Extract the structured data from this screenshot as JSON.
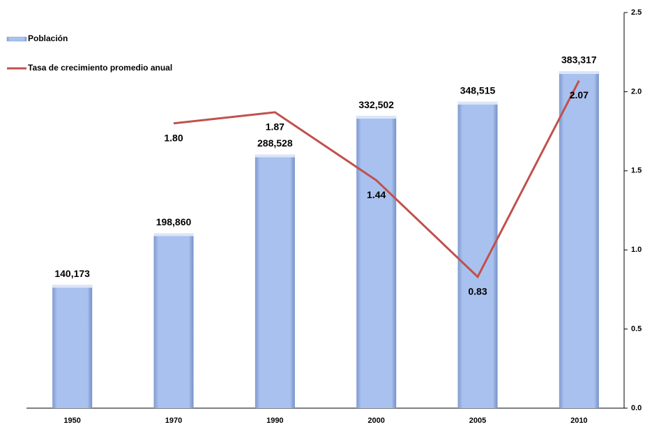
{
  "chart_data": {
    "type": "bar-line",
    "categories": [
      "1950",
      "1970",
      "1990",
      "2000",
      "2005",
      "2010"
    ],
    "series": [
      {
        "name": "Población",
        "type": "bar",
        "color": "#a7bfec",
        "values": [
          140173,
          198860,
          288528,
          332502,
          348515,
          383317
        ],
        "value_labels": [
          "140,173",
          "198,860",
          "288,528",
          "332,502",
          "348,515",
          "383,317"
        ]
      },
      {
        "name": "Tasa de crecimiento promedio anual",
        "type": "line",
        "axis": "y2",
        "color": "#c0504d",
        "values": [
          null,
          1.8,
          1.87,
          1.44,
          0.83,
          2.07
        ],
        "value_labels": [
          null,
          "1.80",
          "1.87",
          "1.44",
          "0.83",
          "2.07"
        ]
      }
    ],
    "ylim": [
      0,
      450000
    ],
    "y2lim": [
      0,
      2.5
    ],
    "y2ticks": [
      {
        "value": 0,
        "label": "0.0"
      },
      {
        "value": 0.5,
        "label": "0.5"
      },
      {
        "value": 1,
        "label": "1.0"
      },
      {
        "value": 1.5,
        "label": "1.5"
      },
      {
        "value": 2,
        "label": "2.0"
      },
      {
        "value": 2.5,
        "label": "2.5"
      }
    ],
    "legend": "top-left"
  }
}
